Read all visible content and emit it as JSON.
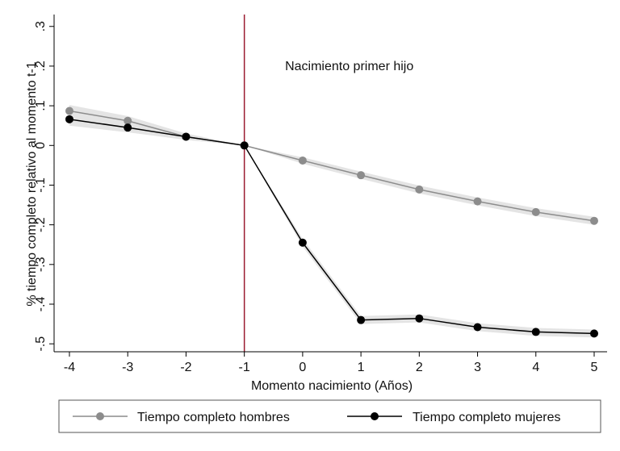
{
  "chart_data": {
    "type": "line",
    "title": "",
    "xlabel": "Momento nacimiento (Años)",
    "ylabel": "% tiempo completo relativo al momento t-1",
    "x": [
      -4,
      -3,
      -2,
      -1,
      0,
      1,
      2,
      3,
      4,
      5
    ],
    "x_ticks": [
      -4,
      -3,
      -2,
      -1,
      0,
      1,
      2,
      3,
      4,
      5
    ],
    "x_tick_labels": [
      "-4",
      "-3",
      "-2",
      "-1",
      "0",
      "1",
      "2",
      "3",
      "4",
      "5"
    ],
    "y_ticks": [
      0.3,
      0.2,
      0.1,
      0,
      -0.1,
      -0.2,
      -0.3,
      -0.4,
      -0.5
    ],
    "y_tick_labels": [
      ".3",
      ".2",
      ".1",
      "0",
      "-.1",
      "-.2",
      "-.3",
      "-.4",
      "-.5"
    ],
    "xlim": [
      -4,
      5
    ],
    "ylim": [
      -0.52,
      0.33
    ],
    "grid": false,
    "legend_position": "bottom",
    "annotation": {
      "text": "Nacimiento primer hijo",
      "x": 0.8,
      "y": 0.2
    },
    "vline": {
      "x": -1,
      "color": "#9b1b30"
    },
    "series": [
      {
        "name": "Tiempo completo hombres",
        "color": "#8c8c8c",
        "values": [
          0.087,
          0.062,
          0.022,
          0,
          -0.038,
          -0.075,
          -0.111,
          -0.141,
          -0.168,
          -0.19
        ],
        "ci_low": [
          0.072,
          0.05,
          0.014,
          0,
          -0.046,
          -0.084,
          -0.121,
          -0.151,
          -0.178,
          -0.2
        ],
        "ci_high": [
          0.102,
          0.074,
          0.03,
          0,
          -0.03,
          -0.066,
          -0.101,
          -0.131,
          -0.158,
          -0.18
        ]
      },
      {
        "name": "Tiempo completo mujeres",
        "color": "#000000",
        "values": [
          0.066,
          0.045,
          0.022,
          0,
          -0.245,
          -0.44,
          -0.436,
          -0.458,
          -0.47,
          -0.474
        ],
        "ci_low": [
          0.05,
          0.033,
          0.014,
          0,
          -0.255,
          -0.45,
          -0.446,
          -0.468,
          -0.48,
          -0.484
        ],
        "ci_high": [
          0.082,
          0.057,
          0.03,
          0,
          -0.235,
          -0.43,
          -0.426,
          -0.448,
          -0.46,
          -0.464
        ]
      }
    ],
    "ci_color": "#e4e4e4"
  }
}
